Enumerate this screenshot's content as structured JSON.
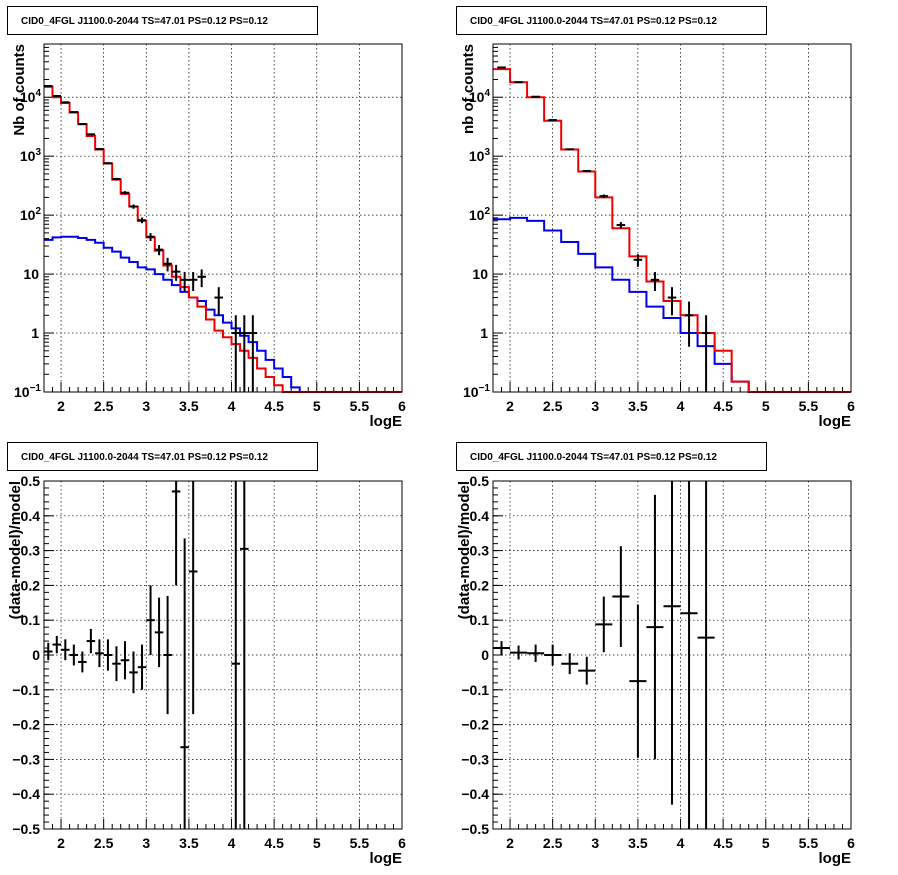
{
  "chart_data": [
    {
      "type": "line",
      "title": "CID0_4FGL J1100.0-2044 TS=47.01 PS=0.12 PS=0.12",
      "xlabel": "logE",
      "ylabel": "Nb of counts",
      "xlim": [
        1.8,
        6.0
      ],
      "ylim": [
        0.1,
        80000
      ],
      "log_y": true,
      "grid": true,
      "x_ticks": [
        "2",
        "2.5",
        "3",
        "3.5",
        "4",
        "4.5",
        "5",
        "5.5",
        "6"
      ],
      "y_ticks": [
        {
          "value": 0.1,
          "label": "10",
          "sup": "−1"
        },
        {
          "value": 1,
          "label": "1",
          "sup": ""
        },
        {
          "value": 10,
          "label": "10",
          "sup": ""
        },
        {
          "value": 100,
          "label": "10",
          "sup": "2"
        },
        {
          "value": 1000,
          "label": "10",
          "sup": "3"
        },
        {
          "value": 10000,
          "label": "10",
          "sup": "4"
        }
      ],
      "bin_edges": [
        1.8,
        1.9,
        2.0,
        2.1,
        2.2,
        2.3,
        2.4,
        2.5,
        2.6,
        2.7,
        2.8,
        2.9,
        3.0,
        3.1,
        3.2,
        3.3,
        3.4,
        3.5,
        3.6,
        3.7,
        3.8,
        3.9,
        4.0,
        4.1,
        4.2,
        4.3,
        4.4,
        4.5,
        4.6,
        4.7,
        4.8,
        4.9,
        5.0,
        5.1,
        5.2,
        5.3,
        5.4,
        5.5,
        5.6,
        5.7,
        5.8,
        5.9,
        6.0
      ],
      "series": [
        {
          "color": "#0000ee",
          "values": [
            38,
            42,
            43,
            43,
            41,
            38,
            34,
            28,
            24,
            19,
            16,
            13,
            12,
            10,
            8,
            6.5,
            5,
            4,
            3.5,
            2.5,
            2,
            1.5,
            1.2,
            0.9,
            0.7,
            0.5,
            0.35,
            0.25,
            0.18,
            0.12,
            0.1,
            0.1,
            0.1,
            0.1,
            0.1,
            0.1,
            0.1,
            0.1,
            0.1,
            0.1,
            0.1,
            0.1
          ]
        },
        {
          "color": "#ee0000",
          "values": [
            15000,
            10000,
            8000,
            5500,
            3500,
            2200,
            1300,
            750,
            400,
            230,
            140,
            80,
            42,
            25,
            14,
            9,
            6,
            4,
            2.8,
            1.7,
            1.1,
            0.85,
            0.65,
            0.5,
            0.38,
            0.25,
            0.18,
            0.13,
            0.1,
            0.1,
            0.1,
            0.1,
            0.1,
            0.1,
            0.1,
            0.1,
            0.1,
            0.1,
            0.1,
            0.1,
            0.1,
            0.1
          ]
        }
      ],
      "points": {
        "color": "#000000",
        "x": [
          1.85,
          1.95,
          2.05,
          2.15,
          2.25,
          2.35,
          2.45,
          2.55,
          2.65,
          2.75,
          2.85,
          2.95,
          3.05,
          3.15,
          3.25,
          3.35,
          3.45,
          3.55,
          3.65,
          3.85,
          4.05,
          4.15,
          4.25
        ],
        "y": [
          15500,
          10500,
          8200,
          5600,
          3500,
          2350,
          1320,
          760,
          410,
          240,
          140,
          82,
          43,
          26,
          15,
          11,
          8,
          8,
          9,
          4,
          1,
          1.0,
          1
        ]
      }
    },
    {
      "type": "line",
      "title": "CID0_4FGL J1100.0-2044 TS=47.01 PS=0.12 PS=0.12",
      "xlabel": "logE",
      "ylabel": "nb of counts",
      "xlim": [
        1.8,
        6.0
      ],
      "ylim": [
        0.1,
        80000
      ],
      "log_y": true,
      "grid": true,
      "x_ticks": [
        "2",
        "2.5",
        "3",
        "3.5",
        "4",
        "4.5",
        "5",
        "5.5",
        "6"
      ],
      "y_ticks": [
        {
          "value": 0.1,
          "label": "10",
          "sup": "−1"
        },
        {
          "value": 1,
          "label": "1",
          "sup": ""
        },
        {
          "value": 10,
          "label": "10",
          "sup": ""
        },
        {
          "value": 100,
          "label": "10",
          "sup": "2"
        },
        {
          "value": 1000,
          "label": "10",
          "sup": "3"
        },
        {
          "value": 10000,
          "label": "10",
          "sup": "4"
        }
      ],
      "bin_edges": [
        1.8,
        2.0,
        2.2,
        2.4,
        2.6,
        2.8,
        3.0,
        3.2,
        3.4,
        3.6,
        3.8,
        4.0,
        4.2,
        4.4,
        4.6,
        4.8,
        5.0,
        5.2,
        5.4,
        5.6,
        5.8,
        6.0
      ],
      "series": [
        {
          "color": "#0000ee",
          "values": [
            85,
            90,
            80,
            55,
            35,
            22,
            13,
            8,
            5,
            2.8,
            1.8,
            1.0,
            0.6,
            0.3,
            0.15,
            0.1,
            0.1,
            0.1,
            0.1,
            0.1,
            0.1
          ]
        },
        {
          "color": "#ee0000",
          "values": [
            30000,
            18000,
            10000,
            4000,
            1300,
            550,
            200,
            60,
            20,
            7.5,
            3.5,
            2,
            1,
            0.5,
            0.15,
            0.1,
            0.1,
            0.1,
            0.1,
            0.1,
            0.1
          ]
        }
      ],
      "points": {
        "color": "#000000",
        "x": [
          1.9,
          2.1,
          2.3,
          2.5,
          2.7,
          2.9,
          3.1,
          3.3,
          3.5,
          3.7,
          3.9,
          4.1,
          4.3
        ],
        "y": [
          32000,
          18000,
          10200,
          4100,
          1310,
          560,
          210,
          68,
          17.5,
          8,
          4,
          2,
          1
        ]
      }
    },
    {
      "type": "scatter",
      "title": "CID0_4FGL J1100.0-2044 TS=47.01 PS=0.12 PS=0.12",
      "xlabel": "logE",
      "ylabel": "(data-model)/model",
      "xlim": [
        1.8,
        6.0
      ],
      "ylim": [
        -0.5,
        0.5
      ],
      "grid": true,
      "x_ticks": [
        "2",
        "2.5",
        "3",
        "3.5",
        "4",
        "4.5",
        "5",
        "5.5",
        "6"
      ],
      "y_ticks": [
        "−0.5",
        "−0.4",
        "−0.3",
        "−0.2",
        "−0.1",
        "0",
        "0.1",
        "0.2",
        "0.3",
        "0.4",
        "0.5"
      ],
      "points": {
        "color": "#000000",
        "x": [
          1.85,
          1.95,
          2.05,
          2.15,
          2.25,
          2.35,
          2.45,
          2.55,
          2.65,
          2.75,
          2.85,
          2.95,
          3.05,
          3.15,
          3.25,
          3.35,
          3.45,
          3.55,
          4.05,
          4.15
        ],
        "y": [
          0.01,
          0.03,
          0.015,
          0.0,
          -0.02,
          0.04,
          0.005,
          0.0,
          -0.025,
          -0.015,
          -0.05,
          -0.035,
          0.1,
          0.065,
          0.0,
          0.47,
          -0.265,
          0.24,
          -0.025,
          0.305
        ],
        "err": [
          0.025,
          0.025,
          0.03,
          0.03,
          0.03,
          0.035,
          0.04,
          0.045,
          0.05,
          0.055,
          0.06,
          0.065,
          0.1,
          0.1,
          0.17,
          0.27,
          0.6,
          0.41,
          1.2,
          1.2
        ],
        "xerr": [
          0.05,
          0.05,
          0.05,
          0.05,
          0.05,
          0.05,
          0.05,
          0.05,
          0.05,
          0.05,
          0.05,
          0.05,
          0.05,
          0.05,
          0.05,
          0.05,
          0.05,
          0.05,
          0.05,
          0.05
        ]
      }
    },
    {
      "type": "scatter",
      "title": "CID0_4FGL J1100.0-2044 TS=47.01 PS=0.12 PS=0.12",
      "xlabel": "logE",
      "ylabel": "(data-model)/model",
      "xlim": [
        1.8,
        6.0
      ],
      "ylim": [
        -0.5,
        0.5
      ],
      "grid": true,
      "x_ticks": [
        "2",
        "2.5",
        "3",
        "3.5",
        "4",
        "4.5",
        "5",
        "5.5",
        "6"
      ],
      "y_ticks": [
        "−0.5",
        "−0.4",
        "−0.3",
        "−0.2",
        "−0.1",
        "0",
        "0.1",
        "0.2",
        "0.3",
        "0.4",
        "0.5"
      ],
      "points": {
        "color": "#000000",
        "x": [
          1.9,
          2.1,
          2.3,
          2.5,
          2.7,
          2.9,
          3.1,
          3.3,
          3.5,
          3.7,
          3.9,
          4.1,
          4.3
        ],
        "y": [
          0.02,
          0.007,
          0.005,
          0.0,
          -0.025,
          -0.045,
          0.088,
          0.168,
          -0.075,
          0.08,
          0.14,
          0.12,
          0.05
        ],
        "err": [
          0.02,
          0.02,
          0.025,
          0.03,
          0.03,
          0.04,
          0.08,
          0.145,
          0.22,
          0.38,
          0.57,
          1.2,
          1.2
        ],
        "xerr": [
          0.1,
          0.1,
          0.1,
          0.1,
          0.1,
          0.1,
          0.1,
          0.1,
          0.1,
          0.1,
          0.1,
          0.1,
          0.1
        ]
      }
    }
  ]
}
